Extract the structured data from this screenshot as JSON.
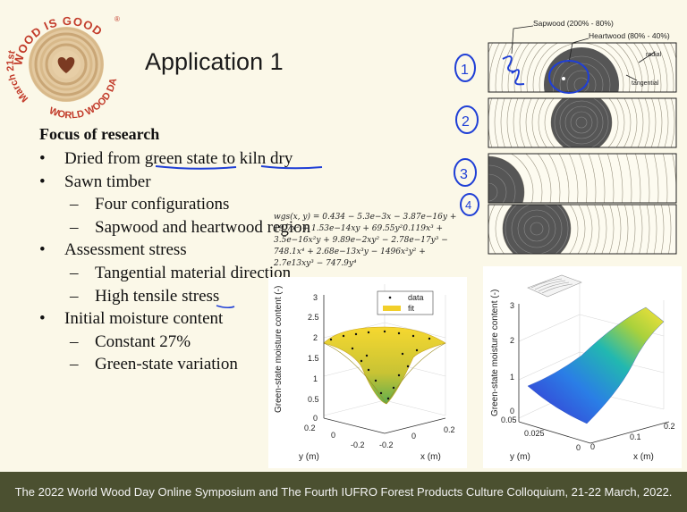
{
  "logo": {
    "text_top": "WOOD IS GOOD",
    "registered": "®",
    "text_side": "WORLD WOOD DAY",
    "text_bottom": "March 21st",
    "icon": "heart-icon"
  },
  "slide": {
    "title": "Application 1",
    "focus_heading": "Focus of research",
    "bullets": [
      "Dried from green state to kiln dry",
      "Sawn timber",
      "Four configurations",
      "Sapwood and heartwood region",
      "Assessment stress",
      "Tangential material direction",
      "High tensile stress",
      "Initial moisture content",
      "Constant 27%",
      "Green-state variation"
    ],
    "formula_lines": [
      "wgs(x, y) = 0.434 − 5.3e−3x − 3.87e−16y +",
      "19.7x² + 1.53e−14xy + 69.55y²0.119x³ +",
      "3.5e−16x²y + 9.89e−2xy² − 2.78e−17y³ −",
      "748.1x⁴ + 2.68e−13x³y − 1496x²y² +",
      "2.7e13xy³ − 747.9y⁴"
    ]
  },
  "diagram": {
    "sapwood_label": "Sapwood (200% - 80%)",
    "heartwood_label": "Heartwood (80% - 40%)",
    "radial_label": "radial",
    "tangential_label": "tangential",
    "handwritten_numbers": [
      "1",
      "2",
      "3",
      "4"
    ]
  },
  "plot_left": {
    "zlabel": "Green-state moisture content (-)",
    "ylabel": "y (m)",
    "xlabel": "x (m)",
    "z_ticks": [
      "0",
      "0.5",
      "1",
      "1.5",
      "2",
      "2.5",
      "3"
    ],
    "y_ticks": [
      "0.2",
      "0",
      "-0.2"
    ],
    "x_ticks": [
      "-0.2",
      "0",
      "0.2"
    ],
    "legend": [
      "data",
      "fit"
    ]
  },
  "plot_right": {
    "zlabel": "Green-state moisture content (-)",
    "ylabel": "y (m)",
    "xlabel": "x (m)",
    "z_ticks": [
      "0",
      "1",
      "2",
      "3"
    ],
    "y_ticks": [
      "0.05",
      "0.025",
      "0"
    ],
    "x_ticks": [
      "0",
      "0.1",
      "0.2"
    ]
  },
  "footer": {
    "text": "The 2022 World Wood Day Online Symposium and The Fourth IUFRO Forest Products Culture Colloquium, 21-22 March, 2022."
  },
  "colors": {
    "background": "#fbf8e8",
    "footer_bg": "#4b5030",
    "logo_red": "#c23b2a",
    "heartwood": "#585858",
    "surface_yellow": "#f2cf2a",
    "annotation_blue": "#1f3fd6"
  }
}
